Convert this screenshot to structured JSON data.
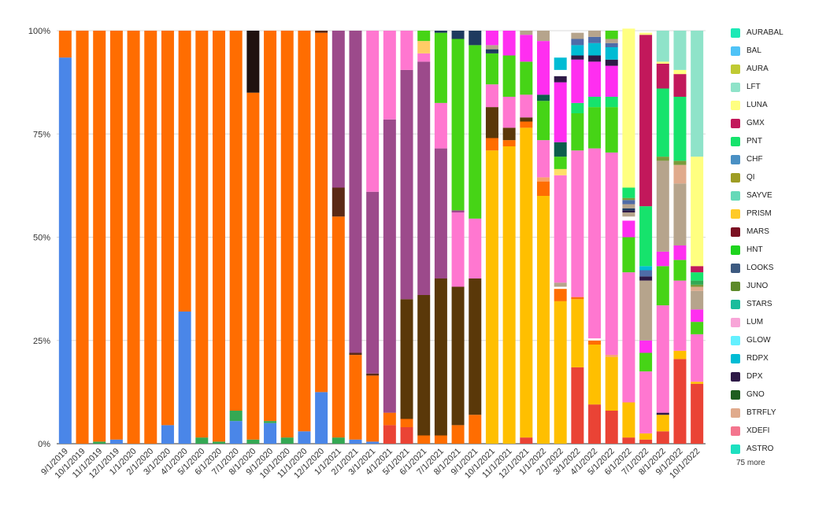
{
  "chart_data": {
    "type": "bar",
    "stacked": "percent",
    "categories": [
      "9/1/2019",
      "10/1/2019",
      "11/1/2019",
      "12/1/2019",
      "1/1/2020",
      "2/1/2020",
      "3/1/2020",
      "4/1/2020",
      "5/1/2020",
      "6/1/2020",
      "7/1/2020",
      "8/1/2020",
      "9/1/2020",
      "10/1/2020",
      "11/1/2020",
      "12/1/2020",
      "1/1/2021",
      "2/1/2021",
      "3/1/2021",
      "4/1/2021",
      "5/1/2021",
      "6/1/2021",
      "7/1/2021",
      "8/1/2021",
      "9/1/2021",
      "10/1/2021",
      "11/1/2021",
      "12/1/2021",
      "1/1/2022",
      "2/1/2022",
      "3/1/2022",
      "4/1/2022",
      "5/1/2022",
      "6/1/2022",
      "7/1/2022",
      "8/1/2022",
      "9/1/2022",
      "10/1/2022"
    ],
    "y_ticks": [
      "0%",
      "25%",
      "50%",
      "75%",
      "100%"
    ],
    "ylim": [
      0,
      100
    ],
    "grid": true,
    "legend_position": "right",
    "segments": [
      [
        [
          93.5,
          "#4a86e8"
        ],
        [
          6.5,
          "#ff6d01"
        ]
      ],
      [
        [
          100,
          "#ff6d01"
        ]
      ],
      [
        [
          0.5,
          "#34a853"
        ],
        [
          99.5,
          "#ff6d01"
        ]
      ],
      [
        [
          1,
          "#4a86e8"
        ],
        [
          99,
          "#ff6d01"
        ]
      ],
      [
        [
          100,
          "#ff6d01"
        ]
      ],
      [
        [
          100,
          "#ff6d01"
        ]
      ],
      [
        [
          4.5,
          "#4a86e8"
        ],
        [
          95.5,
          "#ff6d01"
        ]
      ],
      [
        [
          32,
          "#4a86e8"
        ],
        [
          68,
          "#ff6d01"
        ]
      ],
      [
        [
          1.5,
          "#34a853"
        ],
        [
          98.5,
          "#ff6d01"
        ]
      ],
      [
        [
          0.5,
          "#34a853"
        ],
        [
          99.5,
          "#ff6d01"
        ]
      ],
      [
        [
          5.5,
          "#4a86e8"
        ],
        [
          2.5,
          "#34a853"
        ],
        [
          92,
          "#ff6d01"
        ]
      ],
      [
        [
          1,
          "#34a853"
        ],
        [
          84,
          "#ff6d01"
        ],
        [
          15,
          "#20120f"
        ]
      ],
      [
        [
          5,
          "#4a86e8"
        ],
        [
          0.5,
          "#34a853"
        ],
        [
          94.5,
          "#ff6d01"
        ]
      ],
      [
        [
          1.5,
          "#34a853"
        ],
        [
          98.5,
          "#ff6d01"
        ]
      ],
      [
        [
          3,
          "#4a86e8"
        ],
        [
          97,
          "#ff6d01"
        ]
      ],
      [
        [
          12.5,
          "#4a86e8"
        ],
        [
          87,
          "#ff6d01"
        ],
        [
          0.5,
          "#5b2a16"
        ]
      ],
      [
        [
          1.5,
          "#34a853"
        ],
        [
          53.5,
          "#ff6d01"
        ],
        [
          7,
          "#5b2a16"
        ],
        [
          38,
          "#9c4a8b"
        ]
      ],
      [
        [
          1,
          "#4a86e8"
        ],
        [
          20.5,
          "#ff6d01"
        ],
        [
          0.5,
          "#5b2a16"
        ],
        [
          78,
          "#9c4a8b"
        ]
      ],
      [
        [
          0.5,
          "#4a86e8"
        ],
        [
          16,
          "#ff6d01"
        ],
        [
          0.5,
          "#5b2a16"
        ],
        [
          44,
          "#9c4a8b"
        ],
        [
          39,
          "#ff77d0"
        ]
      ],
      [
        [
          4.5,
          "#ea4335"
        ],
        [
          3,
          "#ff6d01"
        ],
        [
          71,
          "#9c4a8b"
        ],
        [
          21.5,
          "#ff77d0"
        ]
      ],
      [
        [
          4,
          "#ea4335"
        ],
        [
          2,
          "#ff6d01"
        ],
        [
          29,
          "#5a3809"
        ],
        [
          55.5,
          "#9c4a8b"
        ],
        [
          9.5,
          "#ff77d0"
        ]
      ],
      [
        [
          2,
          "#ff6d01"
        ],
        [
          34,
          "#5a3809"
        ],
        [
          56.5,
          "#9c4a8b"
        ],
        [
          2,
          "#ff77d0"
        ],
        [
          3,
          "#ffcc66"
        ],
        [
          0.5,
          "#46d416"
        ],
        [
          2,
          "#46d416"
        ]
      ],
      [
        [
          2,
          "#ff6d01"
        ],
        [
          38,
          "#5a3809"
        ],
        [
          31.5,
          "#9c4a8b"
        ],
        [
          11,
          "#ff77d0"
        ],
        [
          17,
          "#46d416"
        ],
        [
          0.5,
          "#1e3a5f"
        ]
      ],
      [
        [
          4.5,
          "#ff6d01"
        ],
        [
          33.5,
          "#5a3809"
        ],
        [
          18,
          "#ff77d0"
        ],
        [
          0.5,
          "#9c4a8b"
        ],
        [
          41.5,
          "#46d416"
        ],
        [
          2,
          "#1e3a5f"
        ]
      ],
      [
        [
          7,
          "#ff6d01"
        ],
        [
          33,
          "#5a3809"
        ],
        [
          14.5,
          "#ff77d0"
        ],
        [
          42,
          "#46d416"
        ],
        [
          3.5,
          "#1e3a5f"
        ]
      ],
      [
        [
          71,
          "#ffbf00"
        ],
        [
          3,
          "#ff6d01"
        ],
        [
          7.5,
          "#5a3809"
        ],
        [
          5.5,
          "#ff77d0"
        ],
        [
          7.5,
          "#46d416"
        ],
        [
          1,
          "#1e3a5f"
        ],
        [
          1,
          "#b6a48c"
        ],
        [
          3.5,
          "#ff2ef0"
        ]
      ],
      [
        [
          72,
          "#ffbf00"
        ],
        [
          1.5,
          "#ff6d01"
        ],
        [
          3,
          "#5a3809"
        ],
        [
          7.5,
          "#ff77d0"
        ],
        [
          10,
          "#46d416"
        ],
        [
          6,
          "#ff2ef0"
        ]
      ],
      [
        [
          1.5,
          "#ea4335"
        ],
        [
          75,
          "#ffbf00"
        ],
        [
          1.5,
          "#ff6d01"
        ],
        [
          1,
          "#5a3809"
        ],
        [
          5.5,
          "#ff77d0"
        ],
        [
          8,
          "#46d416"
        ],
        [
          6.5,
          "#ff2ef0"
        ],
        [
          1,
          "#b6a48c"
        ]
      ],
      [
        [
          60,
          "#ffbf00"
        ],
        [
          3.5,
          "#ff6d01"
        ],
        [
          1,
          "#f9a26c"
        ],
        [
          9,
          "#ff77d0"
        ],
        [
          9.5,
          "#46d416"
        ],
        [
          1.5,
          "#0b5d4b"
        ],
        [
          13,
          "#ff2ef0"
        ],
        [
          2.5,
          "#b6a48c"
        ]
      ],
      [
        [
          34.5,
          "#ffbf00"
        ],
        [
          3,
          "#ff6d01"
        ],
        [
          0.5,
          "#ffffff"
        ],
        [
          1,
          "#b6a48c"
        ],
        [
          26,
          "#ff77d0"
        ],
        [
          1.5,
          "#ffe066"
        ],
        [
          3,
          "#46d416"
        ],
        [
          3.5,
          "#0b5d4b"
        ],
        [
          14.5,
          "#ff2ef0"
        ],
        [
          1.5,
          "#2e1a47"
        ],
        [
          1.5,
          "#ffffff"
        ],
        [
          3,
          "#00bcd4"
        ],
        [
          6,
          "#ffffff"
        ]
      ],
      [
        [
          18.5,
          "#ea4335"
        ],
        [
          16.5,
          "#ffbf00"
        ],
        [
          0.5,
          "#ff6d01"
        ],
        [
          35.5,
          "#ff77d0"
        ],
        [
          9,
          "#46d416"
        ],
        [
          2.5,
          "#16e36c"
        ],
        [
          10.5,
          "#ff2ef0"
        ],
        [
          1,
          "#2e1a47"
        ],
        [
          2.5,
          "#00bcd4"
        ],
        [
          1.5,
          "#4f6ca8"
        ],
        [
          1.5,
          "#b6a48c"
        ]
      ],
      [
        [
          9.5,
          "#ea4335"
        ],
        [
          14.5,
          "#ffbf00"
        ],
        [
          1,
          "#ff6d01"
        ],
        [
          0.5,
          "#ffffff"
        ],
        [
          46,
          "#ff77d0"
        ],
        [
          10,
          "#46d416"
        ],
        [
          2.5,
          "#16e36c"
        ],
        [
          8.5,
          "#ff2ef0"
        ],
        [
          1.5,
          "#2e1a47"
        ],
        [
          3,
          "#00bcd4"
        ],
        [
          1.5,
          "#4f6ca8"
        ],
        [
          1.5,
          "#b6a48c"
        ]
      ],
      [
        [
          8,
          "#ea4335"
        ],
        [
          13,
          "#ffbf00"
        ],
        [
          0.5,
          "#f9a26c"
        ],
        [
          49,
          "#ff77d0"
        ],
        [
          11,
          "#46d416"
        ],
        [
          2.5,
          "#16e36c"
        ],
        [
          7.5,
          "#ff2ef0"
        ],
        [
          1.5,
          "#2e1a47"
        ],
        [
          3,
          "#00bcd4"
        ],
        [
          1,
          "#4f6ca8"
        ],
        [
          1,
          "#b6a48c"
        ],
        [
          2,
          "#46d416"
        ]
      ],
      [
        [
          1.5,
          "#ea4335"
        ],
        [
          8.5,
          "#ffbf00"
        ],
        [
          31.5,
          "#ff77d0"
        ],
        [
          8.5,
          "#46d416"
        ],
        [
          4,
          "#ff2ef0"
        ],
        [
          1,
          "#ffffff"
        ],
        [
          1,
          "#b6a48c"
        ],
        [
          0.5,
          "#2e1a47"
        ],
        [
          0.5,
          "#1e3a5f"
        ],
        [
          1,
          "#b6a48c"
        ],
        [
          1,
          "#4f6ca8"
        ],
        [
          0.5,
          "#7b9a3b"
        ],
        [
          2.5,
          "#16e36c"
        ],
        [
          38.5,
          "#ffff80"
        ]
      ],
      [
        [
          1,
          "#ea4335"
        ],
        [
          1.5,
          "#ffbf00"
        ],
        [
          15,
          "#ff77d0"
        ],
        [
          4.5,
          "#46d416"
        ],
        [
          3,
          "#ff2ef0"
        ],
        [
          14.5,
          "#b6a48c"
        ],
        [
          1,
          "#2e1a47"
        ],
        [
          1.5,
          "#4f6ca8"
        ],
        [
          1,
          "#00bcd4"
        ],
        [
          14.5,
          "#16e36c"
        ],
        [
          41.5,
          "#c2185b"
        ],
        [
          0.5,
          "#ffff80"
        ]
      ],
      [
        [
          3,
          "#ea4335"
        ],
        [
          4,
          "#ffbf00"
        ],
        [
          0.5,
          "#2e1a47"
        ],
        [
          26,
          "#ff77d0"
        ],
        [
          9.5,
          "#46d416"
        ],
        [
          3.5,
          "#ff2ef0"
        ],
        [
          22,
          "#b6a48c"
        ],
        [
          1,
          "#7b9a3b"
        ],
        [
          16.5,
          "#16e36c"
        ],
        [
          6,
          "#c2185b"
        ],
        [
          0.5,
          "#ffff80"
        ],
        [
          7.5,
          "#8fe3c9"
        ]
      ],
      [
        [
          20.5,
          "#ea4335"
        ],
        [
          2,
          "#ffbf00"
        ],
        [
          17,
          "#ff77d0"
        ],
        [
          5,
          "#46d416"
        ],
        [
          3.5,
          "#ff2ef0"
        ],
        [
          15,
          "#b6a48c"
        ],
        [
          4.5,
          "#e0aa8c"
        ],
        [
          1,
          "#7b9a3b"
        ],
        [
          15.5,
          "#16e36c"
        ],
        [
          5.5,
          "#c2185b"
        ],
        [
          1,
          "#ffff80"
        ],
        [
          9.5,
          "#8fe3c9"
        ]
      ],
      [
        [
          14.5,
          "#ea4335"
        ],
        [
          0.5,
          "#ffbf00"
        ],
        [
          11.5,
          "#ff77d0"
        ],
        [
          3,
          "#46d416"
        ],
        [
          3,
          "#ff2ef0"
        ],
        [
          4.5,
          "#b6a48c"
        ],
        [
          1,
          "#e0aa8c"
        ],
        [
          0.5,
          "#7b9a3b"
        ],
        [
          1,
          "#34a853"
        ],
        [
          2,
          "#16e36c"
        ],
        [
          1.5,
          "#c2185b"
        ],
        [
          26.5,
          "#ffff80"
        ],
        [
          30.5,
          "#8fe3c9"
        ]
      ]
    ],
    "legend": [
      {
        "name": "AURABAL",
        "color": "#1de9b6"
      },
      {
        "name": "BAL",
        "color": "#4fc3f7"
      },
      {
        "name": "AURA",
        "color": "#c0ca33"
      },
      {
        "name": "LFT",
        "color": "#8fe3c9"
      },
      {
        "name": "LUNA",
        "color": "#ffff80"
      },
      {
        "name": "GMX",
        "color": "#c2185b"
      },
      {
        "name": "PNT",
        "color": "#16e36c"
      },
      {
        "name": "CHF",
        "color": "#4a90c4"
      },
      {
        "name": "QI",
        "color": "#9e9d24"
      },
      {
        "name": "SAYVE",
        "color": "#66d9b8"
      },
      {
        "name": "PRISM",
        "color": "#ffca28"
      },
      {
        "name": "MARS",
        "color": "#7b1022"
      },
      {
        "name": "HNT",
        "color": "#1ed41e"
      },
      {
        "name": "LOOKS",
        "color": "#3d5a80"
      },
      {
        "name": "JUNO",
        "color": "#5d8a2a"
      },
      {
        "name": "STARS",
        "color": "#1abc9c"
      },
      {
        "name": "LUM",
        "color": "#f8a5d8"
      },
      {
        "name": "GLOW",
        "color": "#64f0ff"
      },
      {
        "name": "RDPX",
        "color": "#00bcd4"
      },
      {
        "name": "DPX",
        "color": "#2e1a47"
      },
      {
        "name": "GNO",
        "color": "#1e5e20"
      },
      {
        "name": "BTRFLY",
        "color": "#e0aa8c"
      },
      {
        "name": "XDEFI",
        "color": "#f4758e"
      },
      {
        "name": "ASTRO",
        "color": "#1de0c0"
      }
    ],
    "legend_more": "75 more"
  }
}
